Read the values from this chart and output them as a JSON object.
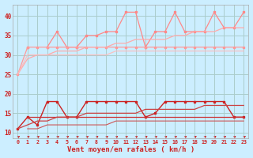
{
  "background_color": "#cceeff",
  "grid_color": "#aacccc",
  "x_labels": [
    "0",
    "1",
    "2",
    "3",
    "4",
    "5",
    "6",
    "7",
    "8",
    "9",
    "10",
    "11",
    "12",
    "13",
    "14",
    "15",
    "16",
    "17",
    "18",
    "19",
    "20",
    "21",
    "22",
    "23"
  ],
  "xlabel": "Vent moyen/en rafales ( km/h )",
  "ylim": [
    8.5,
    43
  ],
  "yticks": [
    10,
    15,
    20,
    25,
    30,
    35,
    40
  ],
  "series": [
    {
      "name": "rafales_spiky",
      "y": [
        null,
        32,
        null,
        32,
        36,
        32,
        32,
        35,
        35,
        36,
        36,
        41,
        41,
        32,
        36,
        36,
        41,
        36,
        36,
        36,
        41,
        37,
        37,
        41
      ],
      "color": "#ff8888",
      "lw": 0.9,
      "marker": "s",
      "ms": 2.0
    },
    {
      "name": "rafales_flat",
      "y": [
        25,
        32,
        32,
        32,
        32,
        32,
        32,
        32,
        32,
        32,
        32,
        32,
        32,
        32,
        32,
        32,
        32,
        32,
        32,
        32,
        32,
        32,
        32,
        32
      ],
      "color": "#ff9999",
      "lw": 0.9,
      "marker": "s",
      "ms": 2.0
    },
    {
      "name": "trend_upper",
      "y": [
        25,
        29,
        30,
        30,
        31,
        31,
        31,
        32,
        32,
        32,
        33,
        33,
        34,
        34,
        34,
        34,
        35,
        35,
        36,
        36,
        36,
        37,
        37,
        37
      ],
      "color": "#ffaaaa",
      "lw": 0.9,
      "marker": null,
      "ms": 0
    },
    {
      "name": "trend_lower2",
      "y": [
        25,
        30,
        30,
        30,
        30,
        30,
        30,
        30,
        30,
        30,
        31,
        31,
        31,
        31,
        31,
        31,
        31,
        31,
        31,
        31,
        31,
        31,
        31,
        31
      ],
      "color": "#ffbbbb",
      "lw": 0.8,
      "marker": null,
      "ms": 0
    },
    {
      "name": "mean_spiky",
      "y": [
        11,
        14,
        12,
        18,
        18,
        14,
        14,
        18,
        18,
        18,
        18,
        18,
        18,
        14,
        15,
        18,
        18,
        18,
        18,
        18,
        18,
        18,
        14,
        14
      ],
      "color": "#cc2222",
      "lw": 1.0,
      "marker": "s",
      "ms": 2.0
    },
    {
      "name": "mean_flat",
      "y": [
        null,
        14,
        14,
        14,
        14,
        14,
        14,
        14,
        14,
        14,
        14,
        14,
        14,
        14,
        14,
        14,
        14,
        14,
        14,
        14,
        14,
        14,
        14,
        14
      ],
      "color": "#cc3333",
      "lw": 0.9,
      "marker": null,
      "ms": 0
    },
    {
      "name": "trend_mean_upper",
      "y": [
        11,
        12,
        13,
        13,
        14,
        14,
        14,
        15,
        15,
        15,
        15,
        15,
        15,
        16,
        16,
        16,
        16,
        16,
        16,
        17,
        17,
        17,
        17,
        17
      ],
      "color": "#cc4444",
      "lw": 0.9,
      "marker": null,
      "ms": 0
    },
    {
      "name": "trend_mean_lower",
      "y": [
        null,
        11,
        11,
        12,
        12,
        12,
        12,
        12,
        12,
        12,
        13,
        13,
        13,
        13,
        13,
        13,
        13,
        13,
        13,
        13,
        13,
        13,
        13,
        13
      ],
      "color": "#cc5555",
      "lw": 0.8,
      "marker": null,
      "ms": 0
    }
  ],
  "arrow_color": "#cc2222"
}
